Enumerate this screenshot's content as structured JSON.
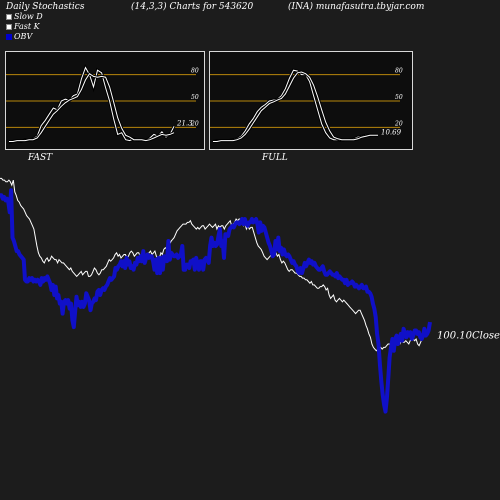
{
  "header": {
    "left": "Daily Stochastics",
    "middle": "(14,3,3) Charts for 543620",
    "right": "(INA) munafasutra.tbyjar.com"
  },
  "legend": [
    {
      "label": "Slow  D",
      "color": "#ffffff"
    },
    {
      "label": "Fast K",
      "color": "#ffffff"
    },
    {
      "label": "OBV",
      "color": "#0000cc"
    }
  ],
  "colors": {
    "obv": "#1010c8",
    "price": "#ffffff",
    "reference_lines": "#b8860b",
    "background": "#1c1c1c"
  },
  "chart_data": [
    {
      "type": "line",
      "title": "FAST",
      "ylim": [
        0,
        100
      ],
      "ticks": [
        20,
        50,
        80
      ],
      "reference_lines": [
        20,
        50,
        80
      ],
      "last_value_label": "21.3",
      "series": [
        {
          "name": "Fast K",
          "values": [
            3,
            4,
            5,
            4,
            6,
            5,
            7,
            10,
            22,
            28,
            35,
            42,
            40,
            50,
            52,
            51,
            56,
            58,
            75,
            88,
            80,
            66,
            85,
            82,
            65,
            50,
            30,
            12,
            14,
            6,
            5,
            7,
            5,
            6,
            5,
            8,
            12,
            10,
            15,
            9,
            12,
            21.3
          ]
        },
        {
          "name": "Slow  D",
          "values": [
            4,
            4,
            5,
            5,
            5,
            6,
            6,
            8,
            14,
            21,
            28,
            35,
            39,
            44,
            48,
            51,
            53,
            55,
            63,
            74,
            81,
            78,
            77,
            78,
            77,
            66,
            49,
            31,
            19,
            11,
            9,
            6,
            6,
            6,
            5,
            6,
            8,
            10,
            12,
            11,
            12,
            14
          ]
        }
      ]
    },
    {
      "type": "line",
      "title": "FULL",
      "ylim": [
        0,
        100
      ],
      "ticks": [
        20,
        50,
        80
      ],
      "reference_lines": [
        20,
        50,
        80
      ],
      "last_value_label": "10.69",
      "series": [
        {
          "name": "Full K",
          "values": [
            4,
            5,
            5,
            5,
            5,
            6,
            7,
            10,
            16,
            24,
            30,
            38,
            43,
            46,
            50,
            51,
            52,
            56,
            64,
            76,
            85,
            84,
            80,
            80,
            72,
            56,
            40,
            24,
            14,
            8,
            6,
            6,
            5,
            6,
            6,
            7,
            9,
            10,
            11,
            11,
            11,
            10.69
          ]
        },
        {
          "name": "Full D",
          "values": [
            4,
            4,
            5,
            5,
            5,
            5,
            6,
            8,
            12,
            18,
            25,
            32,
            39,
            43,
            47,
            49,
            51,
            53,
            58,
            67,
            76,
            82,
            83,
            81,
            77,
            68,
            55,
            40,
            26,
            16,
            9,
            7,
            6,
            6,
            6,
            6,
            7,
            9,
            10,
            11,
            11,
            11
          ]
        }
      ]
    },
    {
      "type": "line",
      "title": "",
      "last_value_label": "100.10Close",
      "series": [
        {
          "name": "OBV",
          "values": [
            80,
            80,
            78,
            79,
            77,
            78,
            76,
            70,
            83,
            55,
            53,
            50,
            47,
            47,
            45,
            44,
            43,
            42,
            30,
            29,
            29,
            31,
            30,
            31,
            29,
            30,
            29,
            30,
            29,
            27,
            31,
            29,
            31,
            30,
            32,
            30,
            28,
            24,
            27,
            21,
            26,
            19,
            21,
            16,
            17,
            10,
            17,
            18,
            16,
            18,
            13,
            16,
            6,
            2,
            11,
            20,
            15,
            17,
            14,
            17,
            14,
            16,
            22,
            20,
            18,
            12,
            16,
            17,
            19,
            18,
            23,
            24,
            21,
            24,
            25,
            24,
            26,
            27,
            29,
            31,
            30,
            31,
            32,
            37,
            36,
            38,
            39,
            41,
            38,
            41,
            37,
            43,
            39,
            41,
            37,
            38,
            36,
            40,
            39,
            43,
            41,
            44,
            41,
            47,
            40,
            43,
            45,
            43,
            44,
            44,
            41,
            36,
            42,
            34,
            43,
            34,
            43,
            36,
            44,
            43,
            41,
            53,
            42,
            46,
            45,
            44,
            44,
            45,
            43,
            44,
            45,
            50,
            36,
            36,
            39,
            39,
            37,
            41,
            41,
            42,
            36,
            43,
            39,
            36,
            41,
            41,
            36,
            42,
            43,
            42,
            40,
            50,
            55,
            50,
            52,
            50,
            51,
            56,
            60,
            50,
            53,
            43,
            57,
            57,
            56,
            60,
            61,
            62,
            61,
            63,
            64,
            64,
            63,
            64,
            66,
            63,
            66,
            63,
            62,
            64,
            64,
            66,
            64,
            65,
            66,
            63,
            58,
            64,
            59,
            62,
            61,
            58,
            55,
            52,
            50,
            47,
            44,
            45,
            53,
            48,
            55,
            47,
            49,
            45,
            48,
            45,
            44,
            45,
            44,
            42,
            40,
            41,
            39,
            38,
            35,
            34,
            37,
            34,
            37,
            40,
            38,
            40,
            42,
            40,
            41,
            39,
            40,
            38,
            37,
            36,
            36,
            37,
            38,
            35,
            33,
            33,
            34,
            35,
            34,
            33,
            33,
            32,
            34,
            31,
            32,
            31,
            30,
            30,
            28,
            30,
            27,
            28,
            28,
            29,
            28,
            26,
            27,
            26,
            25,
            26,
            27,
            25,
            25,
            26,
            23,
            23,
            22,
            20,
            16,
            13,
            8,
            -2,
            -8,
            -20,
            -30,
            -38,
            -44,
            -48,
            -40,
            -28,
            -16,
            -10,
            -5,
            -12,
            -5,
            -3,
            -8,
            -5,
            -2,
            -6,
            1,
            -2,
            -4,
            -1,
            -3,
            -1,
            -5,
            -3,
            0,
            0,
            -2,
            -1,
            -4,
            -5,
            -3,
            1,
            -3,
            -2,
            0,
            5
          ]
        },
        {
          "name": "Close",
          "values": [
            90,
            90,
            89,
            89,
            88,
            88,
            89,
            88,
            86,
            89,
            82,
            80,
            77,
            76,
            74,
            73,
            72,
            70,
            68,
            67,
            66,
            64,
            62,
            60,
            55,
            50,
            46,
            44,
            43,
            41,
            40,
            42,
            43,
            41,
            42,
            44,
            43,
            42,
            42,
            40,
            42,
            41,
            40,
            40,
            39,
            38,
            37,
            36,
            37,
            35,
            34,
            33,
            32,
            33,
            34,
            35,
            33,
            34,
            35,
            35,
            32,
            32,
            33,
            35,
            37,
            36,
            34,
            33,
            34,
            36,
            36,
            37,
            38,
            40,
            42,
            41,
            42,
            43,
            45,
            46,
            44,
            45,
            43,
            44,
            45,
            45,
            43,
            44,
            46,
            47,
            46,
            44,
            45,
            46,
            46,
            44,
            43,
            45,
            46,
            44,
            45,
            46,
            47,
            45,
            46,
            47,
            44,
            43,
            43,
            46,
            45,
            48,
            49,
            48,
            49,
            51,
            53,
            54,
            55,
            57,
            59,
            60,
            61,
            62,
            63,
            63,
            63,
            64,
            64,
            65,
            63,
            62,
            61,
            60,
            61,
            60,
            61,
            62,
            62,
            60,
            61,
            62,
            63,
            62,
            61,
            62,
            63,
            60,
            62,
            61,
            62,
            62,
            60,
            62,
            63,
            64,
            65,
            62,
            63,
            64,
            66,
            65,
            66,
            66,
            64,
            62,
            63,
            60,
            62,
            60,
            61,
            61,
            58,
            55,
            52,
            50,
            49,
            48,
            46,
            44,
            43,
            42,
            43,
            44,
            45,
            46,
            47,
            46,
            44,
            45,
            42,
            40,
            41,
            40,
            38,
            36,
            35,
            36,
            36,
            35,
            34,
            34,
            33,
            32,
            32,
            31,
            31,
            30,
            30,
            29,
            28,
            29,
            27,
            27,
            26,
            25,
            25,
            26,
            26,
            27,
            26,
            24,
            25,
            21,
            19,
            20,
            21,
            18,
            17,
            18,
            19,
            18,
            17,
            18,
            17,
            16,
            15,
            14,
            13,
            12,
            11,
            10,
            11,
            12,
            12,
            10,
            8,
            6,
            3,
            1,
            -2,
            -4,
            -8,
            -10,
            -11,
            -12,
            -11,
            -10,
            -10,
            -11,
            -10,
            -10,
            -9,
            -8,
            -8,
            -9,
            -8,
            -8,
            -7,
            -8,
            -8,
            -8,
            -6,
            -7,
            -7,
            -6,
            -7,
            -8,
            -6,
            -5,
            -5,
            -6,
            -5,
            -8,
            -9,
            -7,
            -5,
            -2,
            -3
          ]
        }
      ]
    }
  ]
}
